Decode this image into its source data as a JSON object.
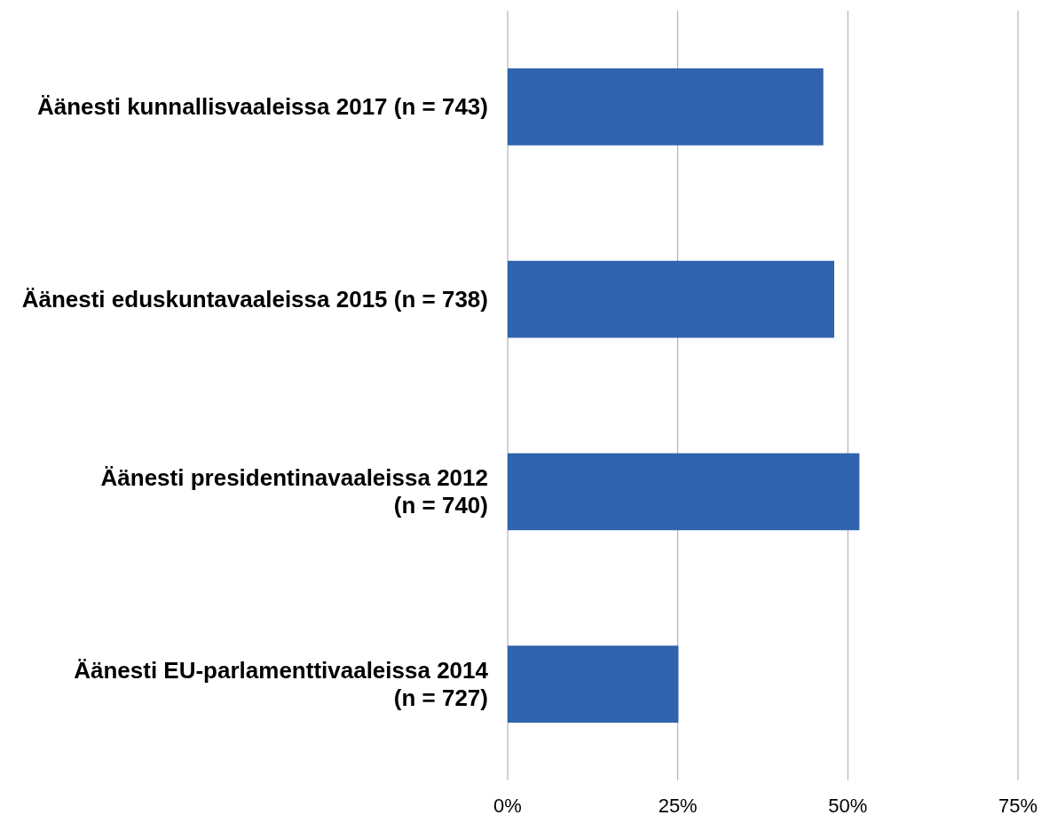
{
  "chart_data": {
    "type": "bar",
    "orientation": "horizontal",
    "categories": [
      "Äänesti kunnallisvaaleissa 2017 (n = 743)",
      "Äänesti eduskuntavaaleissa 2015 (n = 738)",
      "Äänesti presidentinavaaleissa 2012 (n = 740)",
      "Äänesti EU-parlamenttivaaleissa 2014 (n = 727)"
    ],
    "values": [
      46.4,
      48.0,
      51.7,
      25.1
    ],
    "color": "#3063ad",
    "xlim": [
      0,
      75
    ],
    "xticks": [
      {
        "value": 0,
        "label": "0%"
      },
      {
        "value": 25,
        "label": "25%"
      },
      {
        "value": 50,
        "label": "50%"
      },
      {
        "value": 75,
        "label": "75%"
      }
    ],
    "grid": "x"
  }
}
